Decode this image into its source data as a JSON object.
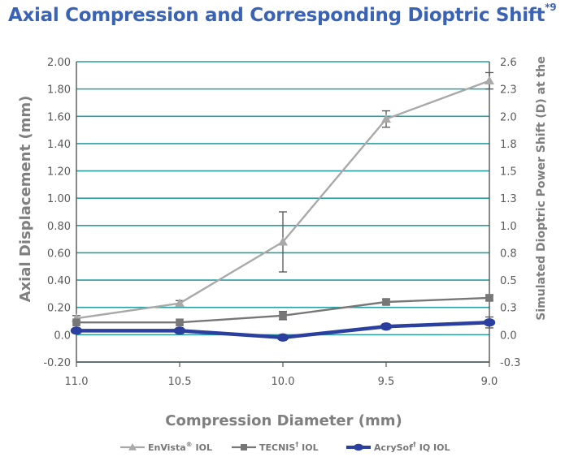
{
  "title": "Axial Compression and Corresponding Dioptric Shift",
  "title_sup": "*9",
  "chart_data": {
    "type": "line",
    "title": "Axial Compression and Corresponding Dioptric Shift",
    "xlabel": "Compression Diameter (mm)",
    "ylabel": "Axial Displacement (mm)",
    "y2label": "Simulated Dioptric Power Shift (D)  at the",
    "categories": [
      "11.0",
      "10.5",
      "10.0",
      "9.5",
      "9.0"
    ],
    "x_tick_labels": [
      "11.0",
      "10.5",
      "10.0",
      "9.5",
      "9.0"
    ],
    "ylim": [
      -0.2,
      2.0
    ],
    "yticks": [
      -0.2,
      0.0,
      0.2,
      0.4,
      0.6,
      0.8,
      1.0,
      1.2,
      1.4,
      1.6,
      1.8,
      2.0
    ],
    "ytick_labels": [
      "-0.20",
      "0.0",
      "0.20",
      "0.40",
      "0.60",
      "0.80",
      "1.00",
      "1.20",
      "1.40",
      "1.60",
      "1.80",
      "2.00"
    ],
    "y2_tick_labels": [
      "-0.3",
      "0.0",
      "0.3",
      "0.5",
      "0.8",
      "1.0",
      "1.3",
      "1.5",
      "1.8",
      "2.0",
      "2.3",
      "2.6"
    ],
    "grid": true,
    "legend_position": "bottom",
    "series": [
      {
        "name": "EnVista",
        "name_sup": "®",
        "name_suffix": " IOL",
        "marker": "triangle",
        "color": "#a9a9a9",
        "values": [
          0.12,
          0.23,
          0.68,
          1.58,
          1.86
        ],
        "error": [
          0.02,
          0.02,
          0.22,
          0.06,
          0.06
        ]
      },
      {
        "name": "TECNIS",
        "name_sup": "†",
        "name_suffix": " IOL",
        "marker": "square",
        "color": "#777777",
        "values": [
          0.09,
          0.09,
          0.14,
          0.24,
          0.27
        ],
        "error": [
          0.01,
          0.01,
          0.03,
          0.02,
          0.02
        ]
      },
      {
        "name": "AcrySof",
        "name_sup": "†",
        "name_suffix": " IQ IOL",
        "marker": "circle",
        "color": "#2a3f9e",
        "values": [
          0.03,
          0.03,
          -0.02,
          0.06,
          0.09
        ],
        "error": [
          0.02,
          0.02,
          0.02,
          0.02,
          0.04
        ]
      }
    ]
  }
}
